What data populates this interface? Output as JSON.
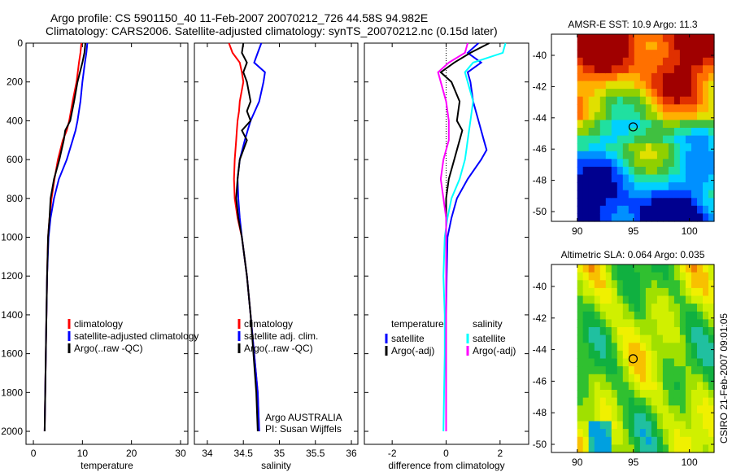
{
  "title": {
    "line1": "Argo profile: CS 5901150_40 11-Feb-2007 20070212_726 44.58S 94.982E",
    "line2": "Climatology: CARS2006. Satellite-adjusted climatology: synTS_20070212.nc (0.15d later)"
  },
  "side_label": "CSIRO 21-Feb-2007 09:01:05",
  "chart_data": [
    {
      "type": "line",
      "id": "temp",
      "xlabel": "temperature",
      "ylabel": "",
      "xlim": [
        -1.5,
        31.5
      ],
      "ylim": [
        0,
        2067
      ],
      "y_reversed": true,
      "xticks": [
        0,
        10,
        20,
        30
      ],
      "yticks": [
        0,
        200,
        400,
        600,
        800,
        1000,
        1200,
        1400,
        1600,
        1800,
        2000
      ],
      "legend": {
        "placement": "lower-right",
        "entries": [
          "climatology",
          "satellite-adjusted climatology",
          "Argo(..raw -QC)"
        ]
      },
      "depth": [
        0,
        50,
        100,
        200,
        300,
        400,
        450,
        500,
        600,
        700,
        800,
        900,
        1000,
        1200,
        1500,
        2000
      ],
      "series": [
        {
          "name": "climatology",
          "color": "#ff0000",
          "values": [
            9.8,
            9.6,
            9.3,
            8.8,
            8.0,
            7.3,
            6.8,
            6.0,
            5.0,
            4.3,
            3.7,
            3.3,
            3.0,
            2.8,
            2.6,
            2.3
          ]
        },
        {
          "name": "satellite-adjusted climatology",
          "color": "#0000ff",
          "values": [
            11.0,
            10.8,
            10.5,
            10.0,
            9.6,
            9.0,
            8.6,
            8.0,
            6.8,
            5.2,
            4.2,
            3.5,
            3.1,
            2.8,
            2.6,
            2.3
          ]
        },
        {
          "name": "Argo(..raw -QC)",
          "color": "#000000",
          "values": [
            10.6,
            10.4,
            10.0,
            9.0,
            8.3,
            7.5,
            6.5,
            6.2,
            5.3,
            4.2,
            3.5,
            3.3,
            3.0,
            2.8,
            2.6,
            2.3
          ]
        }
      ]
    },
    {
      "type": "line",
      "id": "sal",
      "xlabel": "salinity",
      "xlim": [
        33.82,
        36.09
      ],
      "ylim": [
        0,
        2067
      ],
      "y_reversed": true,
      "xticks": [
        34,
        34.5,
        35,
        35.5,
        36
      ],
      "xticklabels": [
        "34",
        "34.5",
        "35",
        "35.5",
        "36"
      ],
      "legend": {
        "placement": "lower-right",
        "entries": [
          "climatology",
          "satellite adj. clim.",
          "Argo(..raw -QC)"
        ]
      },
      "annotation": [
        "Argo AUSTRALIA",
        "PI: Susan Wijffels"
      ],
      "depth": [
        0,
        50,
        100,
        150,
        200,
        300,
        350,
        400,
        450,
        500,
        600,
        700,
        800,
        900,
        1000,
        1200,
        1400,
        1600,
        1800,
        2000
      ],
      "series": [
        {
          "name": "climatology",
          "color": "#ff0000",
          "values": [
            34.3,
            34.35,
            34.45,
            34.48,
            34.5,
            34.45,
            34.44,
            34.42,
            34.41,
            34.4,
            34.38,
            34.37,
            34.38,
            34.42,
            34.48,
            34.55,
            34.6,
            34.65,
            34.7,
            34.72
          ]
        },
        {
          "name": "satellite adj. clim.",
          "color": "#0000ff",
          "values": [
            34.75,
            34.7,
            34.65,
            34.8,
            34.78,
            34.72,
            34.66,
            34.6,
            34.56,
            34.52,
            34.45,
            34.42,
            34.43,
            34.45,
            34.48,
            34.55,
            34.6,
            34.65,
            34.7,
            34.72
          ]
        },
        {
          "name": "Argo(..raw -QC)",
          "color": "#000000",
          "values": [
            34.5,
            34.48,
            34.55,
            34.5,
            34.55,
            34.6,
            34.55,
            34.6,
            34.48,
            34.55,
            34.45,
            34.42,
            34.4,
            34.43,
            34.48,
            34.55,
            34.6,
            34.64,
            34.68,
            34.7
          ]
        }
      ]
    },
    {
      "type": "line",
      "id": "diff",
      "xlabel": "difference from climatology",
      "xlim": [
        -3.03,
        3.06
      ],
      "ylim": [
        0,
        2067
      ],
      "y_reversed": true,
      "xticks": [
        -2,
        0,
        2
      ],
      "legend": {
        "placement": "lower-center",
        "headers": [
          "temperature",
          "salinity"
        ],
        "entries": [
          "satellite",
          "Argo(-adj)",
          "satellite",
          "Argo(-adj)"
        ]
      },
      "depth": [
        0,
        50,
        100,
        150,
        200,
        300,
        400,
        450,
        500,
        550,
        600,
        700,
        800,
        900,
        1000,
        1200,
        1400,
        1600,
        2000
      ],
      "series": [
        {
          "name": "temperature satellite",
          "color": "#0000ff",
          "values": [
            1.2,
            0.8,
            1.3,
            0.8,
            0.9,
            1.0,
            1.2,
            1.3,
            1.4,
            1.5,
            1.3,
            0.8,
            0.4,
            0.2,
            0.05,
            0.02,
            0,
            0,
            0
          ]
        },
        {
          "name": "temperature Argo(-adj)",
          "color": "#000000",
          "values": [
            1.6,
            0.9,
            0.3,
            -0.2,
            0.2,
            0.5,
            0.4,
            0.6,
            0.5,
            0.4,
            0.3,
            0.1,
            0,
            0,
            0,
            0,
            0,
            0,
            0
          ]
        },
        {
          "name": "salinity satellite",
          "color": "#00ffff",
          "values": [
            2.2,
            2.1,
            1.0,
            0.7,
            0.8,
            1.0,
            0.9,
            0.85,
            0.8,
            0.75,
            0.7,
            0.5,
            0.2,
            0.05,
            -0.05,
            -0.1,
            -0.05,
            -0.05,
            -0.1
          ]
        },
        {
          "name": "salinity Argo(-adj)",
          "color": "#ff00ff",
          "values": [
            0.8,
            0.7,
            0.1,
            -0.3,
            -0.2,
            0,
            0.1,
            0.1,
            0.1,
            0,
            -0.1,
            -0.2,
            -0.1,
            0,
            0,
            0,
            0,
            0,
            0
          ]
        }
      ]
    },
    {
      "type": "heatmap",
      "id": "sst",
      "title": "AMSR-E SST: 10.9 Argo: 11.3",
      "xticks": [
        90,
        95,
        100
      ],
      "yticks": [
        -40,
        -42,
        -44,
        -46,
        -48,
        -50
      ],
      "xlim": [
        87.7,
        102.2
      ],
      "ylim": [
        -50.6,
        -38.9
      ],
      "argo_position": [
        94.982,
        -44.58
      ]
    },
    {
      "type": "heatmap",
      "id": "sla",
      "title": "Altimetric SLA: 0.064 Argo: 0.035",
      "xticks": [
        90,
        95,
        100
      ],
      "yticks": [
        -40,
        -42,
        -44,
        -46,
        -48,
        -50
      ],
      "xlim": [
        87.7,
        102.2
      ],
      "ylim": [
        -50.6,
        -38.6
      ],
      "argo_position": [
        94.982,
        -44.58
      ]
    }
  ]
}
